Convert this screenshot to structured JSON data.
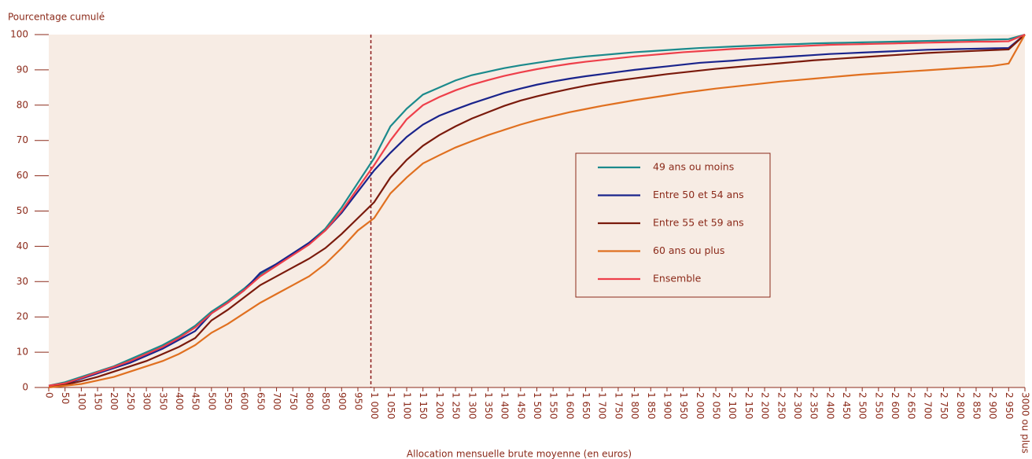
{
  "chart_data": {
    "type": "line",
    "y_label": "Pourcentage cumulé",
    "x_label": "Allocation mensuelle brute moyenne (en euros)",
    "categories": [
      "0",
      "50",
      "100",
      "150",
      "200",
      "250",
      "300",
      "350",
      "400",
      "450",
      "500",
      "550",
      "600",
      "650",
      "700",
      "750",
      "800",
      "850",
      "900",
      "950",
      "1 000",
      "1 050",
      "1 100",
      "1 150",
      "1 200",
      "1 250",
      "1 300",
      "1 350",
      "1 400",
      "1 450",
      "1 500",
      "1 550",
      "1 600",
      "1 650",
      "1 700",
      "1 750",
      "1 800",
      "1 850",
      "1 900",
      "1 950",
      "2 000",
      "2 050",
      "2 100",
      "2 150",
      "2 200",
      "2 250",
      "2 300",
      "2 350",
      "2 400",
      "2 450",
      "2 500",
      "2 550",
      "2 600",
      "2 650",
      "2 700",
      "2 750",
      "2 800",
      "2 850",
      "2 900",
      "2 950",
      "3000 ou plus"
    ],
    "series": [
      {
        "name": "49 ans ou moins",
        "color": "#1b8a8c",
        "values": [
          0.5,
          1.5,
          3,
          4.5,
          6,
          8,
          10,
          12,
          14.5,
          17.5,
          21.5,
          24.5,
          28,
          32,
          35,
          38,
          41,
          45,
          51,
          58,
          65,
          74,
          79,
          83,
          85,
          87,
          88.5,
          89.5,
          90.5,
          91.3,
          92,
          92.7,
          93.3,
          93.8,
          94.2,
          94.6,
          95,
          95.3,
          95.6,
          95.9,
          96.2,
          96.4,
          96.6,
          96.8,
          97,
          97.2,
          97.3,
          97.5,
          97.6,
          97.7,
          97.8,
          97.9,
          98,
          98.1,
          98.2,
          98.3,
          98.4,
          98.5,
          98.6,
          98.7,
          100
        ]
      },
      {
        "name": "Entre 50 et 54 ans",
        "color": "#1a248c",
        "values": [
          0.5,
          1,
          2.5,
          4,
          5.5,
          7,
          9,
          11,
          13.5,
          16,
          21,
          24,
          27.5,
          32.5,
          35,
          38,
          41,
          44.5,
          49.5,
          55.5,
          61.5,
          66.5,
          71,
          74.5,
          77,
          78.8,
          80.5,
          82,
          83.5,
          84.7,
          85.8,
          86.7,
          87.5,
          88.2,
          88.8,
          89.4,
          90,
          90.5,
          91,
          91.5,
          92,
          92.3,
          92.6,
          93,
          93.3,
          93.6,
          93.9,
          94.2,
          94.5,
          94.7,
          94.9,
          95.1,
          95.3,
          95.5,
          95.7,
          95.8,
          95.9,
          96,
          96.1,
          96.2,
          100
        ]
      },
      {
        "name": "Entre 55 et 59 ans",
        "color": "#7a1a0c",
        "values": [
          0.3,
          0.8,
          1.8,
          3,
          4.5,
          6,
          7.5,
          9.5,
          11.5,
          14,
          19,
          22,
          25.5,
          29,
          31.5,
          34,
          36.5,
          39.5,
          43.5,
          48,
          52.5,
          59.5,
          64.5,
          68.5,
          71.5,
          74,
          76.2,
          78,
          79.8,
          81.3,
          82.5,
          83.6,
          84.6,
          85.5,
          86.3,
          87,
          87.6,
          88.2,
          88.8,
          89.3,
          89.8,
          90.3,
          90.7,
          91.1,
          91.5,
          91.9,
          92.3,
          92.7,
          93,
          93.3,
          93.6,
          93.9,
          94.2,
          94.5,
          94.8,
          95,
          95.2,
          95.4,
          95.6,
          95.8,
          100
        ]
      },
      {
        "name": "60 ans ou plus",
        "color": "#e07020",
        "values": [
          0,
          0.5,
          1,
          2,
          3,
          4.5,
          6,
          7.5,
          9.5,
          12,
          15.5,
          18,
          21,
          24,
          26.5,
          29,
          31.5,
          35,
          39.5,
          44.5,
          48,
          55,
          59.5,
          63.5,
          65.8,
          68,
          69.8,
          71.5,
          73,
          74.5,
          75.8,
          76.9,
          78,
          78.9,
          79.8,
          80.6,
          81.4,
          82.1,
          82.8,
          83.5,
          84.1,
          84.7,
          85.2,
          85.7,
          86.2,
          86.7,
          87.1,
          87.5,
          87.9,
          88.3,
          88.7,
          89,
          89.3,
          89.6,
          89.9,
          90.2,
          90.5,
          90.8,
          91.1,
          91.8,
          100
        ]
      },
      {
        "name": "Ensemble",
        "color": "#ee3f4a",
        "values": [
          0.5,
          1.2,
          2.7,
          4.3,
          5.8,
          7.5,
          9.5,
          11.5,
          14,
          17,
          21,
          24,
          27.5,
          31.5,
          34.5,
          37.5,
          40.5,
          44.5,
          50,
          56.5,
          63,
          70,
          76,
          80,
          82.3,
          84.2,
          85.8,
          87.1,
          88.3,
          89.3,
          90.2,
          91,
          91.7,
          92.3,
          92.8,
          93.3,
          93.8,
          94.2,
          94.6,
          95,
          95.3,
          95.6,
          95.9,
          96.1,
          96.3,
          96.5,
          96.7,
          96.9,
          97.1,
          97.2,
          97.3,
          97.4,
          97.5,
          97.6,
          97.7,
          97.8,
          97.9,
          98,
          98,
          98.1,
          100
        ]
      }
    ],
    "ylim": [
      0,
      100
    ],
    "yticks": [
      0,
      10,
      20,
      30,
      40,
      50,
      60,
      70,
      80,
      90,
      100
    ],
    "grid": false,
    "legend": "center-right",
    "reference_line": {
      "x": 19.8,
      "color": "#8b1a1a"
    },
    "plot_background": "#f7ece4"
  }
}
